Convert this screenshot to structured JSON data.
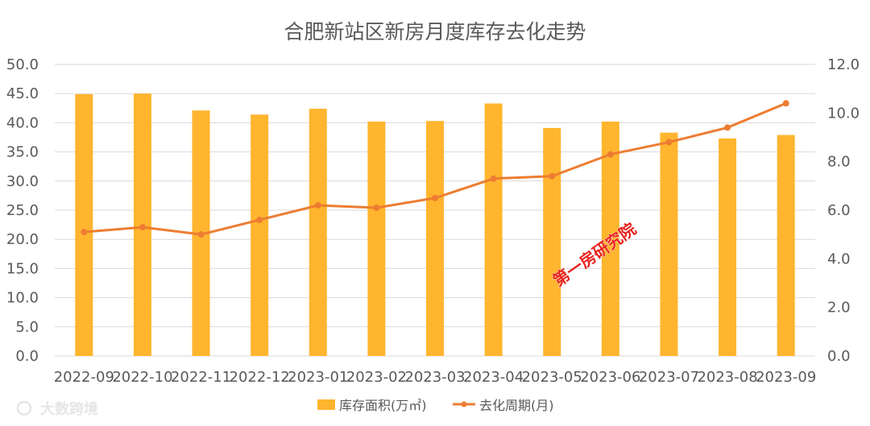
{
  "chart_data": {
    "type": "bar",
    "title": "合肥新站区新房月度库存去化走势",
    "categories": [
      "2022-09",
      "2022-10",
      "2022-11",
      "2022-12",
      "2023-01",
      "2023-02",
      "2023-03",
      "2023-04",
      "2023-05",
      "2023-06",
      "2023-07",
      "2023-08",
      "2023-09"
    ],
    "series": [
      {
        "name": "库存面积(万㎡)",
        "type": "bar",
        "axis": "left",
        "color": "#FFB52E",
        "values": [
          44.9,
          45.0,
          42.1,
          41.4,
          42.4,
          40.2,
          40.3,
          43.3,
          39.1,
          40.2,
          38.3,
          37.3,
          37.9
        ]
      },
      {
        "name": "去化周期(月)",
        "type": "line",
        "axis": "right",
        "color": "#ED7D31",
        "values": [
          5.1,
          5.3,
          5.0,
          5.6,
          6.2,
          6.1,
          6.5,
          7.3,
          7.4,
          8.3,
          8.8,
          9.4,
          10.4
        ]
      }
    ],
    "y_left": {
      "min": 0,
      "max": 50,
      "ticks": [
        "0.0",
        "5.0",
        "10.0",
        "15.0",
        "20.0",
        "25.0",
        "30.0",
        "35.0",
        "40.0",
        "45.0",
        "50.0"
      ]
    },
    "y_right": {
      "min": 0,
      "max": 12,
      "ticks": [
        "0.0",
        "2.0",
        "4.0",
        "6.0",
        "8.0",
        "10.0",
        "12.0"
      ]
    },
    "grid": true,
    "legend_position": "bottom"
  },
  "watermark": "第一房研究院",
  "logo_text": "大数跨境"
}
